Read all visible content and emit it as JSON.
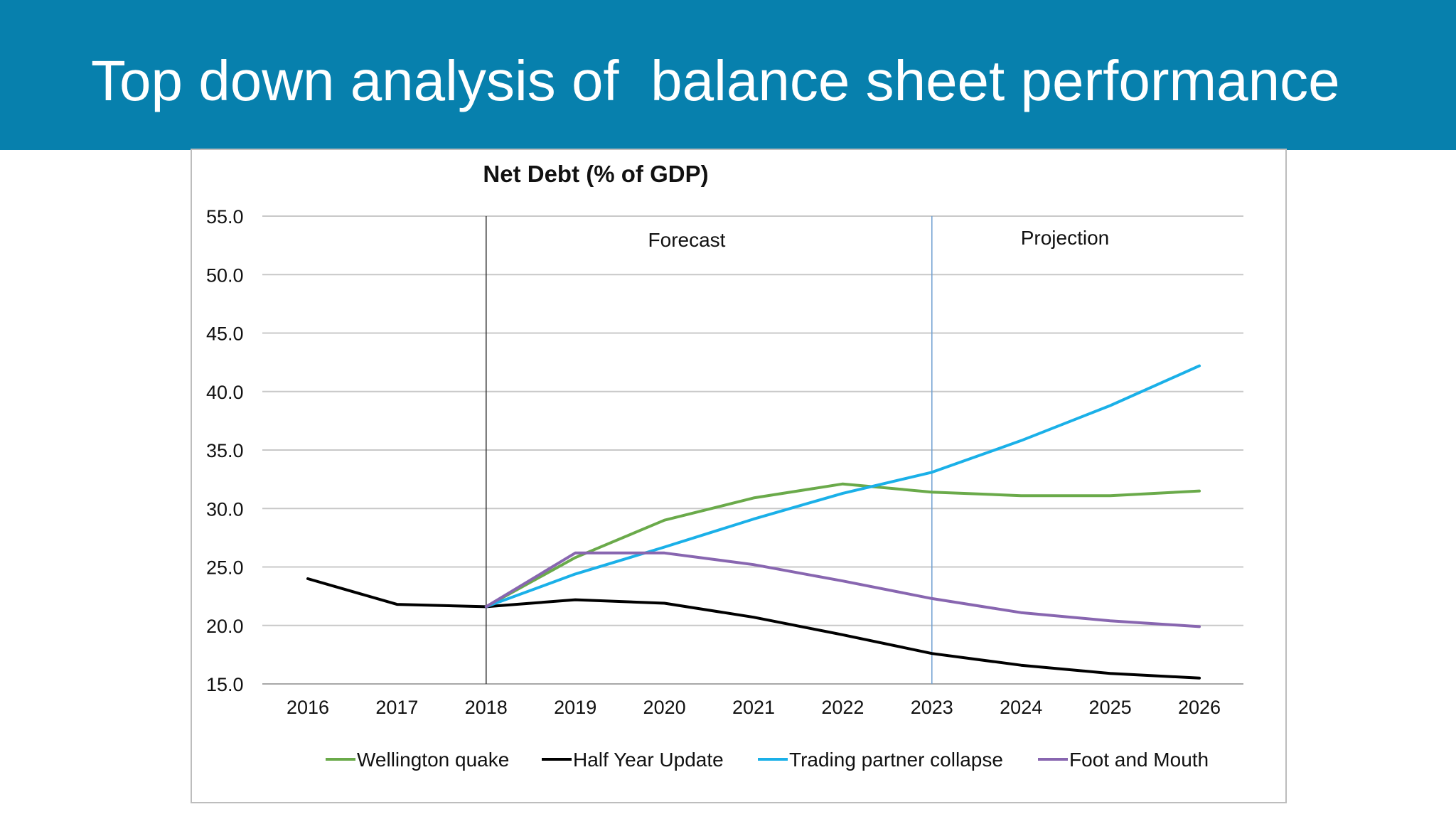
{
  "slide": {
    "title": "Top down analysis of  balance sheet performance",
    "header_color": "#0780ad"
  },
  "chart_data": {
    "type": "line",
    "title": "Net Debt (%  of GDP)",
    "xlabel": "",
    "ylabel": "",
    "categories": [
      "2016",
      "2017",
      "2018",
      "2019",
      "2020",
      "2021",
      "2022",
      "2023",
      "2024",
      "2025",
      "2026"
    ],
    "ylim": [
      15,
      55
    ],
    "yticks": [
      "15.0",
      "20.0",
      "25.0",
      "30.0",
      "35.0",
      "40.0",
      "45.0",
      "50.0",
      "55.0"
    ],
    "grid": "horizontal",
    "legend_position": "bottom",
    "regions": [
      {
        "label": "Forecast",
        "start": "2018"
      },
      {
        "label": "Projection",
        "start": "2023"
      }
    ],
    "series": [
      {
        "name": "Wellington quake",
        "color": "#6aaa4a",
        "values": [
          null,
          null,
          21.6,
          25.8,
          29.0,
          30.9,
          32.1,
          31.4,
          31.1,
          31.1,
          31.5
        ]
      },
      {
        "name": "Half Year Update",
        "color": "#000000",
        "values": [
          24.0,
          21.8,
          21.6,
          22.2,
          21.9,
          20.7,
          19.2,
          17.6,
          16.6,
          15.9,
          15.5
        ]
      },
      {
        "name": "Trading partner collapse",
        "color": "#1ab0e8",
        "values": [
          null,
          null,
          21.6,
          24.4,
          26.7,
          29.1,
          31.3,
          33.1,
          35.8,
          38.8,
          42.2
        ]
      },
      {
        "name": "Foot and Mouth",
        "color": "#8866b0",
        "values": [
          null,
          null,
          21.6,
          26.2,
          26.2,
          25.2,
          23.8,
          22.3,
          21.1,
          20.4,
          19.9
        ]
      }
    ]
  }
}
